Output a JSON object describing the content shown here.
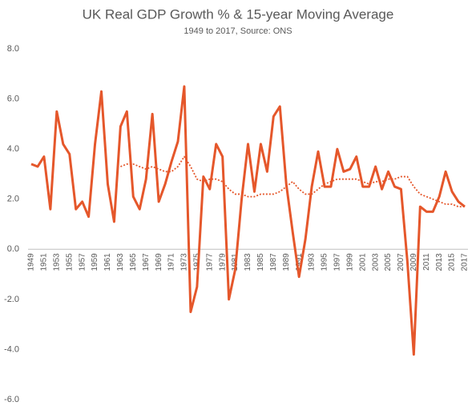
{
  "chart_data": {
    "type": "line",
    "title": "UK Real GDP Growth % & 15-year Moving Average",
    "subtitle": "1949 to 2017, Source: ONS",
    "categories": [
      "1949",
      null,
      "1951",
      null,
      "1953",
      null,
      "1955",
      null,
      "1957",
      null,
      "1959",
      null,
      "1961",
      null,
      "1963",
      null,
      "1965",
      null,
      "1967",
      null,
      "1969",
      null,
      "1971",
      null,
      "1973",
      null,
      "1975",
      null,
      "1977",
      null,
      "1979",
      null,
      "1981",
      null,
      "1983",
      null,
      "1985",
      null,
      "1987",
      null,
      "1989",
      null,
      "1991",
      null,
      "1993",
      null,
      "1995",
      null,
      "1997",
      null,
      "1999",
      null,
      "2001",
      null,
      "2003",
      null,
      "2005",
      null,
      "2007",
      null,
      "2009",
      null,
      "2011",
      null,
      "2013",
      null,
      "2015",
      null,
      "2017"
    ],
    "series": [
      {
        "color": "#e5572b",
        "style": "solid",
        "values": [
          3.4,
          3.3,
          3.7,
          1.6,
          5.5,
          4.2,
          3.8,
          1.6,
          1.9,
          1.3,
          4.2,
          6.3,
          2.6,
          1.1,
          4.9,
          5.5,
          2.1,
          1.6,
          2.8,
          5.4,
          1.9,
          2.6,
          3.5,
          4.3,
          6.5,
          -2.5,
          -1.5,
          2.9,
          2.4,
          4.2,
          3.7,
          -2.0,
          -0.8,
          2.0,
          4.2,
          2.3,
          4.2,
          3.1,
          5.3,
          5.7,
          2.6,
          0.7,
          -1.1,
          0.4,
          2.5,
          3.9,
          2.5,
          2.5,
          4.0,
          3.1,
          3.2,
          3.7,
          2.5,
          2.5,
          3.3,
          2.4,
          3.1,
          2.5,
          2.4,
          -0.5,
          -4.2,
          1.7,
          1.5,
          1.5,
          2.1,
          3.1,
          2.3,
          1.9,
          1.7
        ]
      },
      {
        "color": "#e5572b",
        "style": "dotted",
        "values": [
          null,
          null,
          null,
          null,
          null,
          null,
          null,
          null,
          null,
          null,
          null,
          null,
          null,
          null,
          3.3,
          3.4,
          3.4,
          3.3,
          3.2,
          3.3,
          3.2,
          3.1,
          3.1,
          3.3,
          3.7,
          3.3,
          2.8,
          2.7,
          2.8,
          2.8,
          2.7,
          2.4,
          2.2,
          2.2,
          2.1,
          2.1,
          2.2,
          2.2,
          2.2,
          2.3,
          2.5,
          2.7,
          2.4,
          2.2,
          2.2,
          2.4,
          2.6,
          2.7,
          2.8,
          2.8,
          2.8,
          2.8,
          2.7,
          2.6,
          2.7,
          2.7,
          2.8,
          2.8,
          2.9,
          2.9,
          2.5,
          2.2,
          2.1,
          2.0,
          1.9,
          1.8,
          1.8,
          1.7,
          1.7
        ]
      }
    ],
    "ylim": [
      -6,
      8
    ],
    "yticks": [
      {
        "value": -6,
        "label": "-6.0"
      },
      {
        "value": -4,
        "label": "-4.0"
      },
      {
        "value": -2,
        "label": "-2.0"
      },
      {
        "value": 0,
        "label": "0.0"
      },
      {
        "value": 2,
        "label": "2.0"
      },
      {
        "value": 4,
        "label": "4.0"
      },
      {
        "value": 6,
        "label": "6.0"
      },
      {
        "value": 8,
        "label": "8.0"
      }
    ],
    "grid": false
  }
}
